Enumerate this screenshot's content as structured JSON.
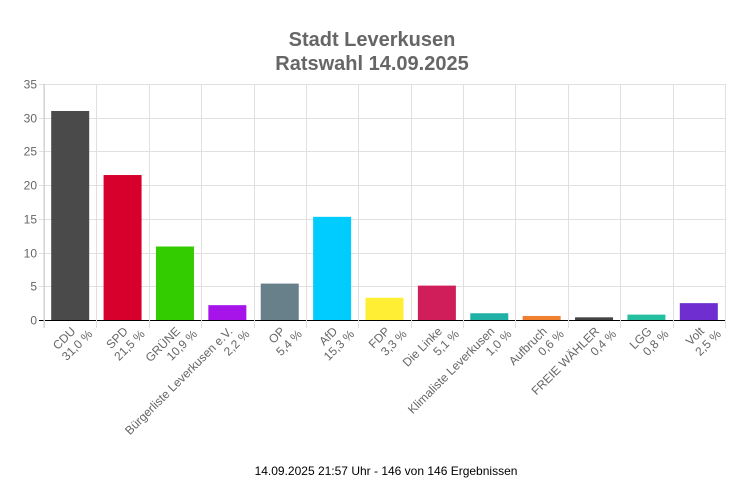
{
  "chart_data": {
    "type": "bar",
    "title": "Stadt Leverkusen",
    "subtitle": "Ratswahl 14.09.2025",
    "xlabel": "",
    "ylabel": "",
    "ylim": [
      0,
      35
    ],
    "yticks": [
      0,
      5,
      10,
      15,
      20,
      25,
      30,
      35
    ],
    "grid": true,
    "categories": [
      "CDU",
      "SPD",
      "GRÜNE",
      "Bürgerliste Leverkusen e.V.",
      "OP",
      "AfD",
      "FDP",
      "Die Linke",
      "Klimaliste Leverkusen",
      "Aufbruch",
      "FREIE WÄHLER",
      "LGG",
      "Volt"
    ],
    "values": [
      31.0,
      21.5,
      10.9,
      2.2,
      5.4,
      15.3,
      3.3,
      5.1,
      1.0,
      0.6,
      0.4,
      0.8,
      2.5
    ],
    "value_labels": [
      "31,0 %",
      "21,5 %",
      "10,9 %",
      "2,2 %",
      "5,4 %",
      "15,3 %",
      "3,3 %",
      "5,1 %",
      "1,0 %",
      "0,6 %",
      "0,4 %",
      "0,8 %",
      "2,5 %"
    ],
    "colors": [
      "#4a4a4a",
      "#d7002d",
      "#33cc00",
      "#a614ea",
      "#688089",
      "#00ccff",
      "#ffee33",
      "#d01e5b",
      "#1fb0a6",
      "#f07f30",
      "#444444",
      "#25c0a0",
      "#6f2fd0"
    ],
    "footer": "14.09.2025 21:57 Uhr - 146 von 146 Ergebnissen"
  }
}
